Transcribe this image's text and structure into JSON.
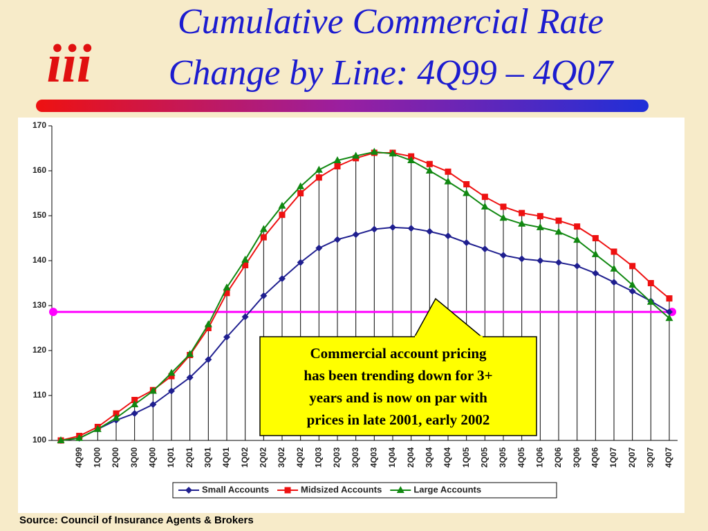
{
  "chart_data": {
    "type": "line",
    "title_lines": [
      "Cumulative Commercial Rate",
      "Change by Line: 4Q99 – 4Q07"
    ],
    "logo": "iii",
    "source": "Source:  Council of Insurance Agents & Brokers",
    "annotation_lines": [
      "Commercial account pricing",
      "has been trending down for 3+",
      "years and is now on par with",
      "prices in late 2001, early 2002"
    ],
    "categories": [
      null,
      "4Q99",
      "1Q00",
      "2Q00",
      "3Q00",
      "4Q00",
      "1Q01",
      "2Q01",
      "3Q01",
      "4Q01",
      "1Q02",
      "2Q02",
      "3Q02",
      "4Q02",
      "1Q03",
      "2Q03",
      "3Q03",
      "4Q03",
      "1Q04",
      "2Q04",
      "3Q04",
      "4Q04",
      "1Q05",
      "2Q05",
      "3Q05",
      "4Q05",
      "1Q06",
      "2Q06",
      "3Q06",
      "4Q06",
      "1Q07",
      "2Q07",
      "3Q07",
      "4Q07"
    ],
    "series": [
      {
        "name": "Small Accounts",
        "color": "#1f1f8f",
        "marker": "diamond",
        "values": [
          100,
          100.5,
          102.5,
          104.5,
          106,
          108,
          111,
          114,
          118,
          123,
          127.5,
          132.2,
          136,
          139.6,
          142.8,
          144.7,
          145.8,
          147,
          147.4,
          147.2,
          146.5,
          145.5,
          144,
          142.6,
          141.2,
          140.4,
          140,
          139.6,
          138.8,
          137.2,
          135.2,
          133.2,
          131,
          128.6
        ]
      },
      {
        "name": "Midsized Accounts",
        "color": "#ee1111",
        "marker": "square",
        "values": [
          100,
          101,
          103,
          106,
          109,
          111.2,
          114.3,
          119,
          125,
          132.8,
          139,
          145.2,
          150.2,
          155,
          158.5,
          161,
          162.8,
          164,
          164,
          163.2,
          161.5,
          159.8,
          157,
          154.2,
          152,
          150.6,
          149.9,
          148.9,
          147.6,
          145,
          142,
          138.8,
          135,
          131.6
        ]
      },
      {
        "name": "Large Accounts",
        "color": "#118811",
        "marker": "triangle",
        "values": [
          100,
          100.5,
          102.5,
          105,
          108,
          111,
          115,
          119.2,
          125.8,
          134,
          140.2,
          147,
          152.2,
          156.5,
          160.2,
          162.3,
          163.3,
          164.2,
          163.8,
          162.3,
          160,
          157.6,
          155,
          152,
          149.5,
          148.2,
          147.4,
          146.4,
          144.6,
          141.4,
          138.2,
          134.6,
          130.8,
          127.2
        ]
      }
    ],
    "reference_line": {
      "value": 128.6,
      "color": "#ff00ff"
    },
    "ylim": [
      100,
      170
    ],
    "yticks": [
      100,
      110,
      120,
      130,
      140,
      150,
      160,
      170
    ],
    "legend": "bottom"
  }
}
